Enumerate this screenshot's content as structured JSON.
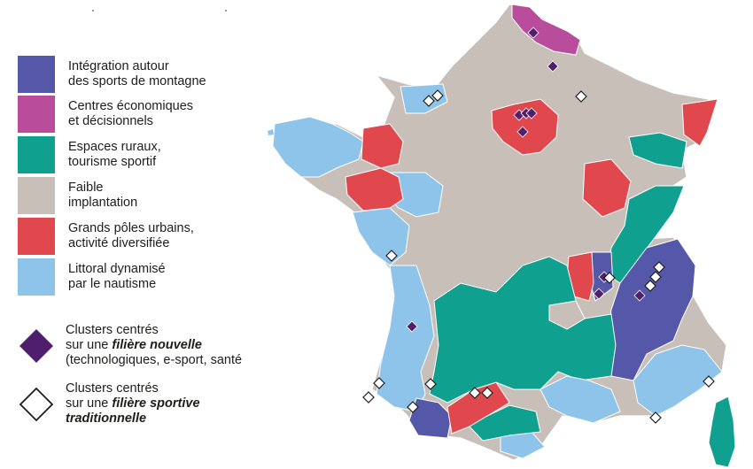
{
  "legend": {
    "categories": [
      {
        "line1": "Intégration autour",
        "line2": "des sports de montagne",
        "color": "#5558a8"
      },
      {
        "line1": "Centres économiques",
        "line2": "et décisionnels",
        "color": "#b94d9c"
      },
      {
        "line1": "Espaces ruraux,",
        "line2": "tourisme sportif",
        "color": "#0fa08f"
      },
      {
        "line1": "Faible",
        "line2": "implantation",
        "color": "#c9bfb9"
      },
      {
        "line1": "Grands pôles urbains,",
        "line2": "activité diversifiée",
        "color": "#e0484d"
      },
      {
        "line1": "Littoral dynamisé",
        "line2": "par le nautisme",
        "color": "#8fc4ea"
      }
    ],
    "markers": [
      {
        "kind": "filled-diamond",
        "line1": "Clusters centrés",
        "line2_prefix": "sur une ",
        "line2_emphasis": "filière nouvelle",
        "line3": "(technologiques, e-sport, santé",
        "color": "#4f1f6e"
      },
      {
        "kind": "hollow-diamond",
        "line1": "Clusters centrés",
        "line2_prefix": "sur une ",
        "line2_emphasis": "filière sportive",
        "line3": "traditionnelle",
        "color": "#ffffff"
      }
    ]
  }
}
